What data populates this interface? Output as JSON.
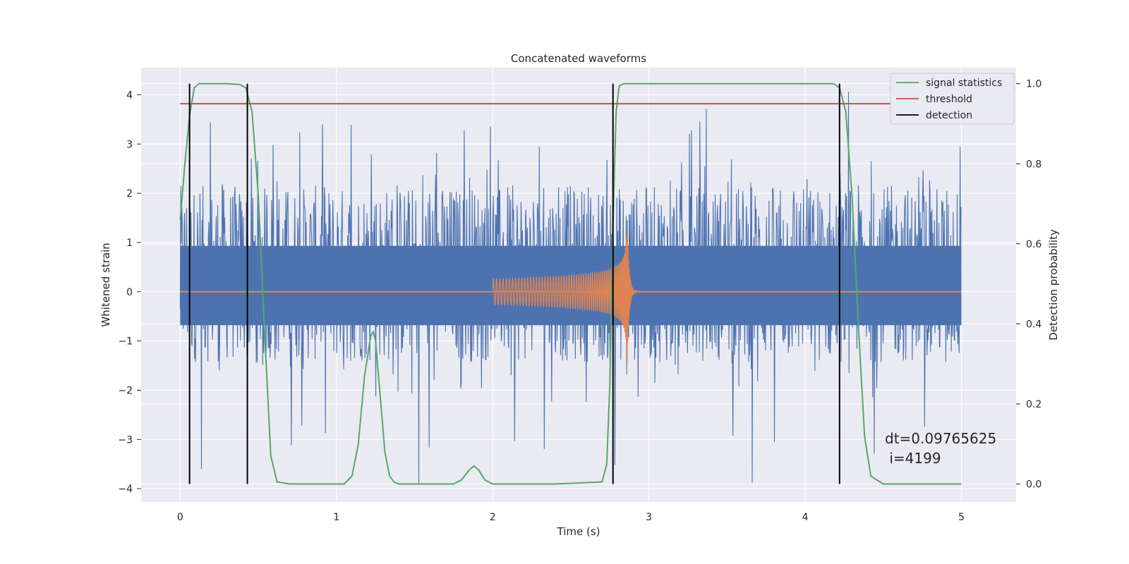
{
  "chart_data": {
    "type": "line",
    "title": "Concatenated waveforms",
    "xlabel": "Time (s)",
    "ylabel": "Whitened strain",
    "y2label": "Detection probability",
    "xlim": [
      -0.25,
      5.35
    ],
    "ylim": [
      -4.27,
      4.55
    ],
    "y2lim": [
      -0.045,
      1.04
    ],
    "xticks": [
      0,
      1,
      2,
      3,
      4,
      5
    ],
    "yticks": [
      -4,
      -3,
      -2,
      -1,
      0,
      1,
      2,
      3,
      4
    ],
    "y2ticks": [
      0.0,
      0.2,
      0.4,
      0.6,
      0.8,
      1.0
    ],
    "grid": true,
    "legend_position": "top-right",
    "legend": [
      {
        "label": "signal statistics",
        "color": "#55a868"
      },
      {
        "label": "threshold",
        "color": "#c44e52"
      },
      {
        "label": "detection",
        "color": "#000000"
      }
    ],
    "strain_noise": {
      "color": "#4c72b0",
      "x_start": 0,
      "x_end": 5,
      "core_range": [
        -0.68,
        0.93
      ],
      "spike_range": [
        -3.9,
        4.1
      ]
    },
    "waveform": {
      "color": "#dd8452",
      "x_start": 2.0,
      "x_merger": 2.86,
      "x_end": 3.0,
      "peak_amplitude": 1.5
    },
    "series": [
      {
        "name": "signal statistics",
        "axis": "y2",
        "color": "#55a868",
        "x": [
          0,
          0.03,
          0.06,
          0.09,
          0.12,
          0.2,
          0.3,
          0.38,
          0.42,
          0.46,
          0.5,
          0.54,
          0.58,
          0.62,
          0.7,
          0.9,
          1.05,
          1.1,
          1.14,
          1.18,
          1.22,
          1.235,
          1.25,
          1.28,
          1.31,
          1.34,
          1.37,
          1.4,
          1.6,
          1.75,
          1.8,
          1.85,
          1.88,
          1.91,
          1.95,
          2.0,
          2.4,
          2.7,
          2.73,
          2.75,
          2.77,
          2.79,
          2.81,
          2.84,
          2.9,
          3.5,
          4.0,
          4.18,
          4.22,
          4.26,
          4.3,
          4.34,
          4.38,
          4.42,
          4.5,
          5.0
        ],
        "y": [
          0.66,
          0.8,
          0.92,
          0.99,
          1.0,
          1.0,
          1.0,
          0.998,
          0.99,
          0.93,
          0.72,
          0.38,
          0.07,
          0.005,
          0.0,
          0.0,
          0.0,
          0.02,
          0.1,
          0.27,
          0.37,
          0.38,
          0.36,
          0.22,
          0.08,
          0.02,
          0.004,
          0.0,
          0.0,
          0.0,
          0.01,
          0.035,
          0.045,
          0.035,
          0.01,
          0.0,
          0.0,
          0.005,
          0.05,
          0.25,
          0.65,
          0.93,
          0.995,
          1.0,
          1.0,
          1.0,
          1.0,
          1.0,
          0.99,
          0.93,
          0.72,
          0.4,
          0.12,
          0.02,
          0.0,
          0.0
        ]
      },
      {
        "name": "threshold",
        "axis": "y2",
        "color": "#c44e52",
        "x": [
          0,
          5.1
        ],
        "y": [
          0.95,
          0.95
        ]
      }
    ],
    "detections": {
      "name": "detection",
      "axis": "y2",
      "color": "#000000",
      "x": [
        0.06,
        0.43,
        2.77,
        4.22
      ],
      "y_range": [
        0.0,
        1.0
      ]
    },
    "annotation": {
      "line1": "dt=0.09765625",
      "line2": " i=4199",
      "x": 4.5,
      "y": -2.9
    }
  }
}
